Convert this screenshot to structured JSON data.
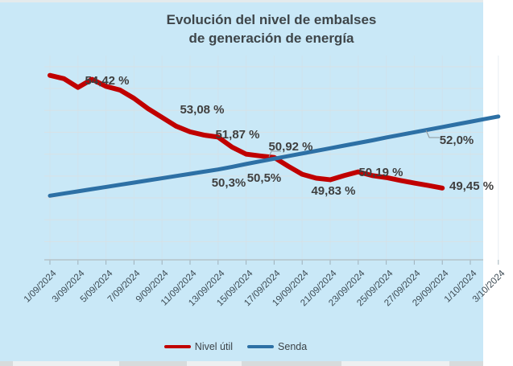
{
  "background_color": "#c9e8f7",
  "chart_data": {
    "type": "line",
    "title": "Evolución del nivel de embalses de generación de energía",
    "title_lines": [
      "Evolución del nivel de embalses",
      "de generación de energía"
    ],
    "xlabel": "",
    "ylabel": "",
    "y_axis_tick_labels_visible": false,
    "ylim": [
      46.2,
      55.6
    ],
    "grid": "horizontal gridlines every 1%, faint vertical gridlines at date ticks",
    "legend_position": "bottom",
    "x_tick_labels": [
      "1/09/2024",
      "3/09/2024",
      "5/09/2024",
      "7/09/2024",
      "9/09/2024",
      "11/09/2024",
      "13/09/2024",
      "15/09/2024",
      "17/09/2024",
      "19/09/2024",
      "21/09/2024",
      "23/09/2024",
      "25/09/2024",
      "27/09/2024",
      "29/09/2024",
      "1/10/2024",
      "3/10/2024"
    ],
    "x_tick_days": [
      1,
      3,
      5,
      7,
      9,
      11,
      13,
      15,
      17,
      19,
      21,
      23,
      25,
      27,
      29,
      31,
      33
    ],
    "series": [
      {
        "id": "nivel-util",
        "name": "Nivel útil",
        "color": "#c00000",
        "width": 6,
        "start_day": 1,
        "values": [
          54.6,
          54.45,
          54.05,
          54.42,
          54.1,
          53.93,
          53.55,
          53.08,
          52.68,
          52.28,
          52.02,
          51.87,
          51.78,
          51.32,
          51.0,
          50.92,
          50.85,
          50.45,
          50.08,
          49.9,
          49.83,
          50.02,
          50.19,
          50.02,
          49.93,
          49.8,
          49.68,
          49.57,
          49.45
        ]
      },
      {
        "id": "senda",
        "name": "Senda",
        "color": "#2d70a5",
        "width": 5,
        "start_day": 1,
        "values": [
          49.1,
          49.2,
          49.3,
          49.4,
          49.5,
          49.6,
          49.7,
          49.8,
          49.9,
          50.0,
          50.1,
          50.2,
          50.3,
          50.42,
          50.55,
          50.67,
          50.79,
          50.91,
          51.03,
          51.15,
          51.27,
          51.39,
          51.51,
          51.63,
          51.76,
          51.88,
          52.0,
          52.12,
          52.24,
          52.36,
          52.48,
          52.6,
          52.72
        ]
      }
    ],
    "data_labels": [
      {
        "text": "54,42 %",
        "series": "nivel-util",
        "day": 4,
        "value": 54.42,
        "cx": 133,
        "cy": 100
      },
      {
        "text": "53,08 %",
        "series": "nivel-util",
        "day": 8,
        "value": 53.08,
        "cx": 251,
        "cy": 136
      },
      {
        "text": "51,87 %",
        "series": "nivel-util",
        "day": 12,
        "value": 51.87,
        "cx": 295,
        "cy": 167
      },
      {
        "text": "50,92 %",
        "series": "nivel-util",
        "day": 16,
        "value": 50.92,
        "cx": 361,
        "cy": 182
      },
      {
        "text": "50,3%",
        "series": "senda",
        "day": 13,
        "value": 50.3,
        "cx": 284,
        "cy": 227
      },
      {
        "text": "50,5%",
        "series": "senda",
        "day": 15,
        "value": 50.5,
        "cx": 328,
        "cy": 221
      },
      {
        "text": "49,83 %",
        "series": "nivel-util",
        "day": 21,
        "value": 49.83,
        "cx": 414,
        "cy": 237
      },
      {
        "text": "50,19 %",
        "series": "nivel-util",
        "day": 23,
        "value": 50.19,
        "cx": 473,
        "cy": 214
      },
      {
        "text": "52,0%",
        "series": "senda",
        "day": 27,
        "value": 52.0,
        "cx": 567,
        "cy": 174
      },
      {
        "text": "49,45 %",
        "series": "nivel-util",
        "day": 29,
        "value": 49.45,
        "cx": 558,
        "cy": 231,
        "anchor": "start"
      }
    ],
    "leader_lines": [
      {
        "label": "50,92 %",
        "points": [
          [
            349,
            188
          ],
          [
            337,
            188
          ],
          [
            334,
            195
          ]
        ]
      },
      {
        "label": "52,0%",
        "points": [
          [
            546,
            171
          ],
          [
            533,
            171
          ],
          [
            529,
            162
          ]
        ]
      }
    ]
  }
}
